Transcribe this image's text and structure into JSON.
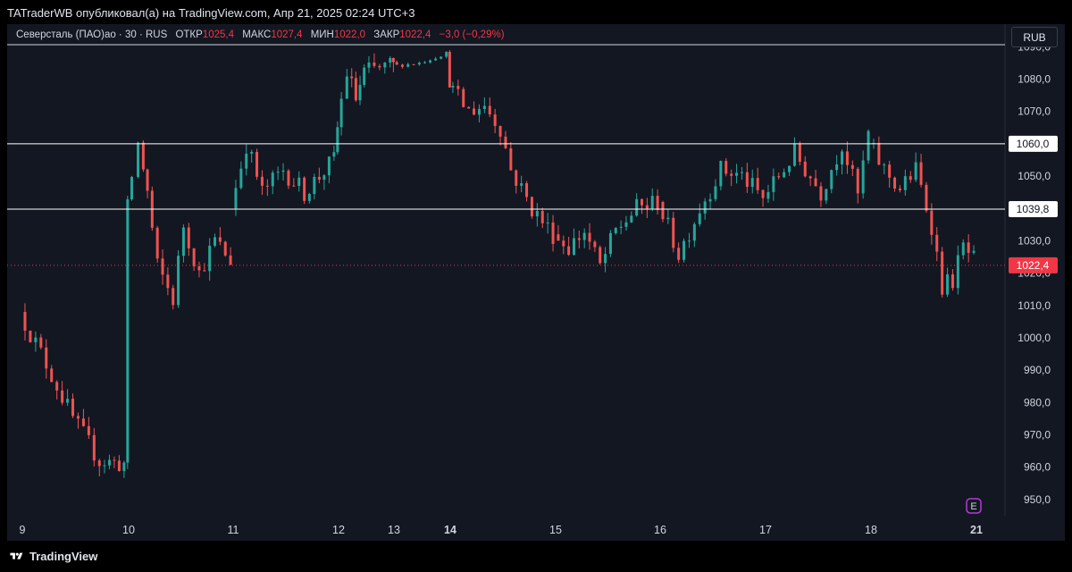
{
  "header": {
    "publish_text": "TATraderWB опубликовал(а) на TradingView.com, Апр 21, 2025 02:24 UTC+3"
  },
  "legend": {
    "symbol": "Северсталь (ПАО)ао · 30 · RUS",
    "open_label": "ОТКР",
    "open_value": "1025,4",
    "high_label": "МАКС",
    "high_value": "1027,4",
    "low_label": "МИН",
    "low_value": "1022,0",
    "close_label": "ЗАКР",
    "close_value": "1022,4",
    "change": "−3,0 (−0,29%)"
  },
  "currency": "RUB",
  "footer": {
    "brand": "TradingView"
  },
  "colors": {
    "up": "#26a69a",
    "down": "#ef5350",
    "background": "#131722",
    "price_badge": "#f23645"
  },
  "chart_data": {
    "type": "candlestick",
    "interval": "30",
    "ylim": [
      945,
      1097
    ],
    "y_ticks": [
      1090,
      1080,
      1070,
      1060,
      1050,
      1040,
      1030,
      1020,
      1010,
      1000,
      990,
      980,
      970,
      960,
      950
    ],
    "y_tick_labels": [
      "1090,0",
      "1080,0",
      "1070,0",
      "1060,0",
      "1050,0",
      "1040,0",
      "1030,0",
      "1020,0",
      "1010,0",
      "1000,0",
      "990,0",
      "980,0",
      "970,0",
      "960,0",
      "950,0"
    ],
    "x_ticks": [
      "9",
      "10",
      "11",
      "12",
      "13",
      "14",
      "15",
      "16",
      "17",
      "18",
      "21"
    ],
    "bold_x_ticks": [
      "14",
      "21"
    ],
    "horizontal_levels": [
      {
        "value": 1060.0,
        "label": "1060,0"
      },
      {
        "value": 1039.8,
        "label": "1039,8"
      }
    ],
    "last_price": {
      "value": 1022.4,
      "label": "1022,4"
    },
    "event_marker": "E",
    "session_path": [
      [
        0,
        1008
      ],
      [
        0.25,
        992
      ],
      [
        0.5,
        975
      ],
      [
        0.75,
        962
      ],
      [
        0.98,
        961
      ],
      [
        1,
        1040
      ],
      [
        1.12,
        1060
      ],
      [
        1.2,
        1045
      ],
      [
        1.3,
        1022
      ],
      [
        1.45,
        1012
      ],
      [
        1.55,
        1035
      ],
      [
        1.7,
        1020
      ],
      [
        1.85,
        1030
      ],
      [
        2.0,
        1024
      ],
      [
        2,
        1040
      ],
      [
        2.15,
        1060
      ],
      [
        2.3,
        1045
      ],
      [
        2.5,
        1052
      ],
      [
        2.7,
        1045
      ],
      [
        2.98,
        1055
      ],
      [
        3,
        1065
      ],
      [
        3.2,
        1082
      ],
      [
        3.35,
        1074
      ],
      [
        3.5,
        1082
      ],
      [
        3.98,
        1084
      ],
      [
        4,
        1084
      ],
      [
        4.5,
        1085
      ],
      [
        4.98,
        1088
      ],
      [
        5,
        1078
      ],
      [
        5.2,
        1070
      ],
      [
        5.35,
        1072
      ],
      [
        5.5,
        1065
      ],
      [
        5.6,
        1052
      ],
      [
        5.8,
        1040
      ],
      [
        6.0,
        1032
      ],
      [
        6,
        1032
      ],
      [
        6.15,
        1028
      ],
      [
        6.3,
        1033
      ],
      [
        6.45,
        1022
      ],
      [
        6.6,
        1033
      ],
      [
        6.8,
        1040
      ],
      [
        7.0,
        1042
      ],
      [
        7,
        1042
      ],
      [
        7.2,
        1026
      ],
      [
        7.4,
        1040
      ],
      [
        7.6,
        1052
      ],
      [
        7.8,
        1050
      ],
      [
        8.0,
        1043
      ],
      [
        8,
        1043
      ],
      [
        8.3,
        1057
      ],
      [
        8.55,
        1045
      ],
      [
        8.75,
        1060
      ],
      [
        8.9,
        1044
      ],
      [
        9.0,
        1063
      ],
      [
        9,
        1060
      ],
      [
        9.15,
        1052
      ],
      [
        9.3,
        1046
      ],
      [
        9.45,
        1052
      ],
      [
        9.6,
        1035
      ],
      [
        9.7,
        1016
      ],
      [
        9.8,
        1018
      ],
      [
        9.9,
        1028
      ],
      [
        10.0,
        1024
      ]
    ]
  }
}
